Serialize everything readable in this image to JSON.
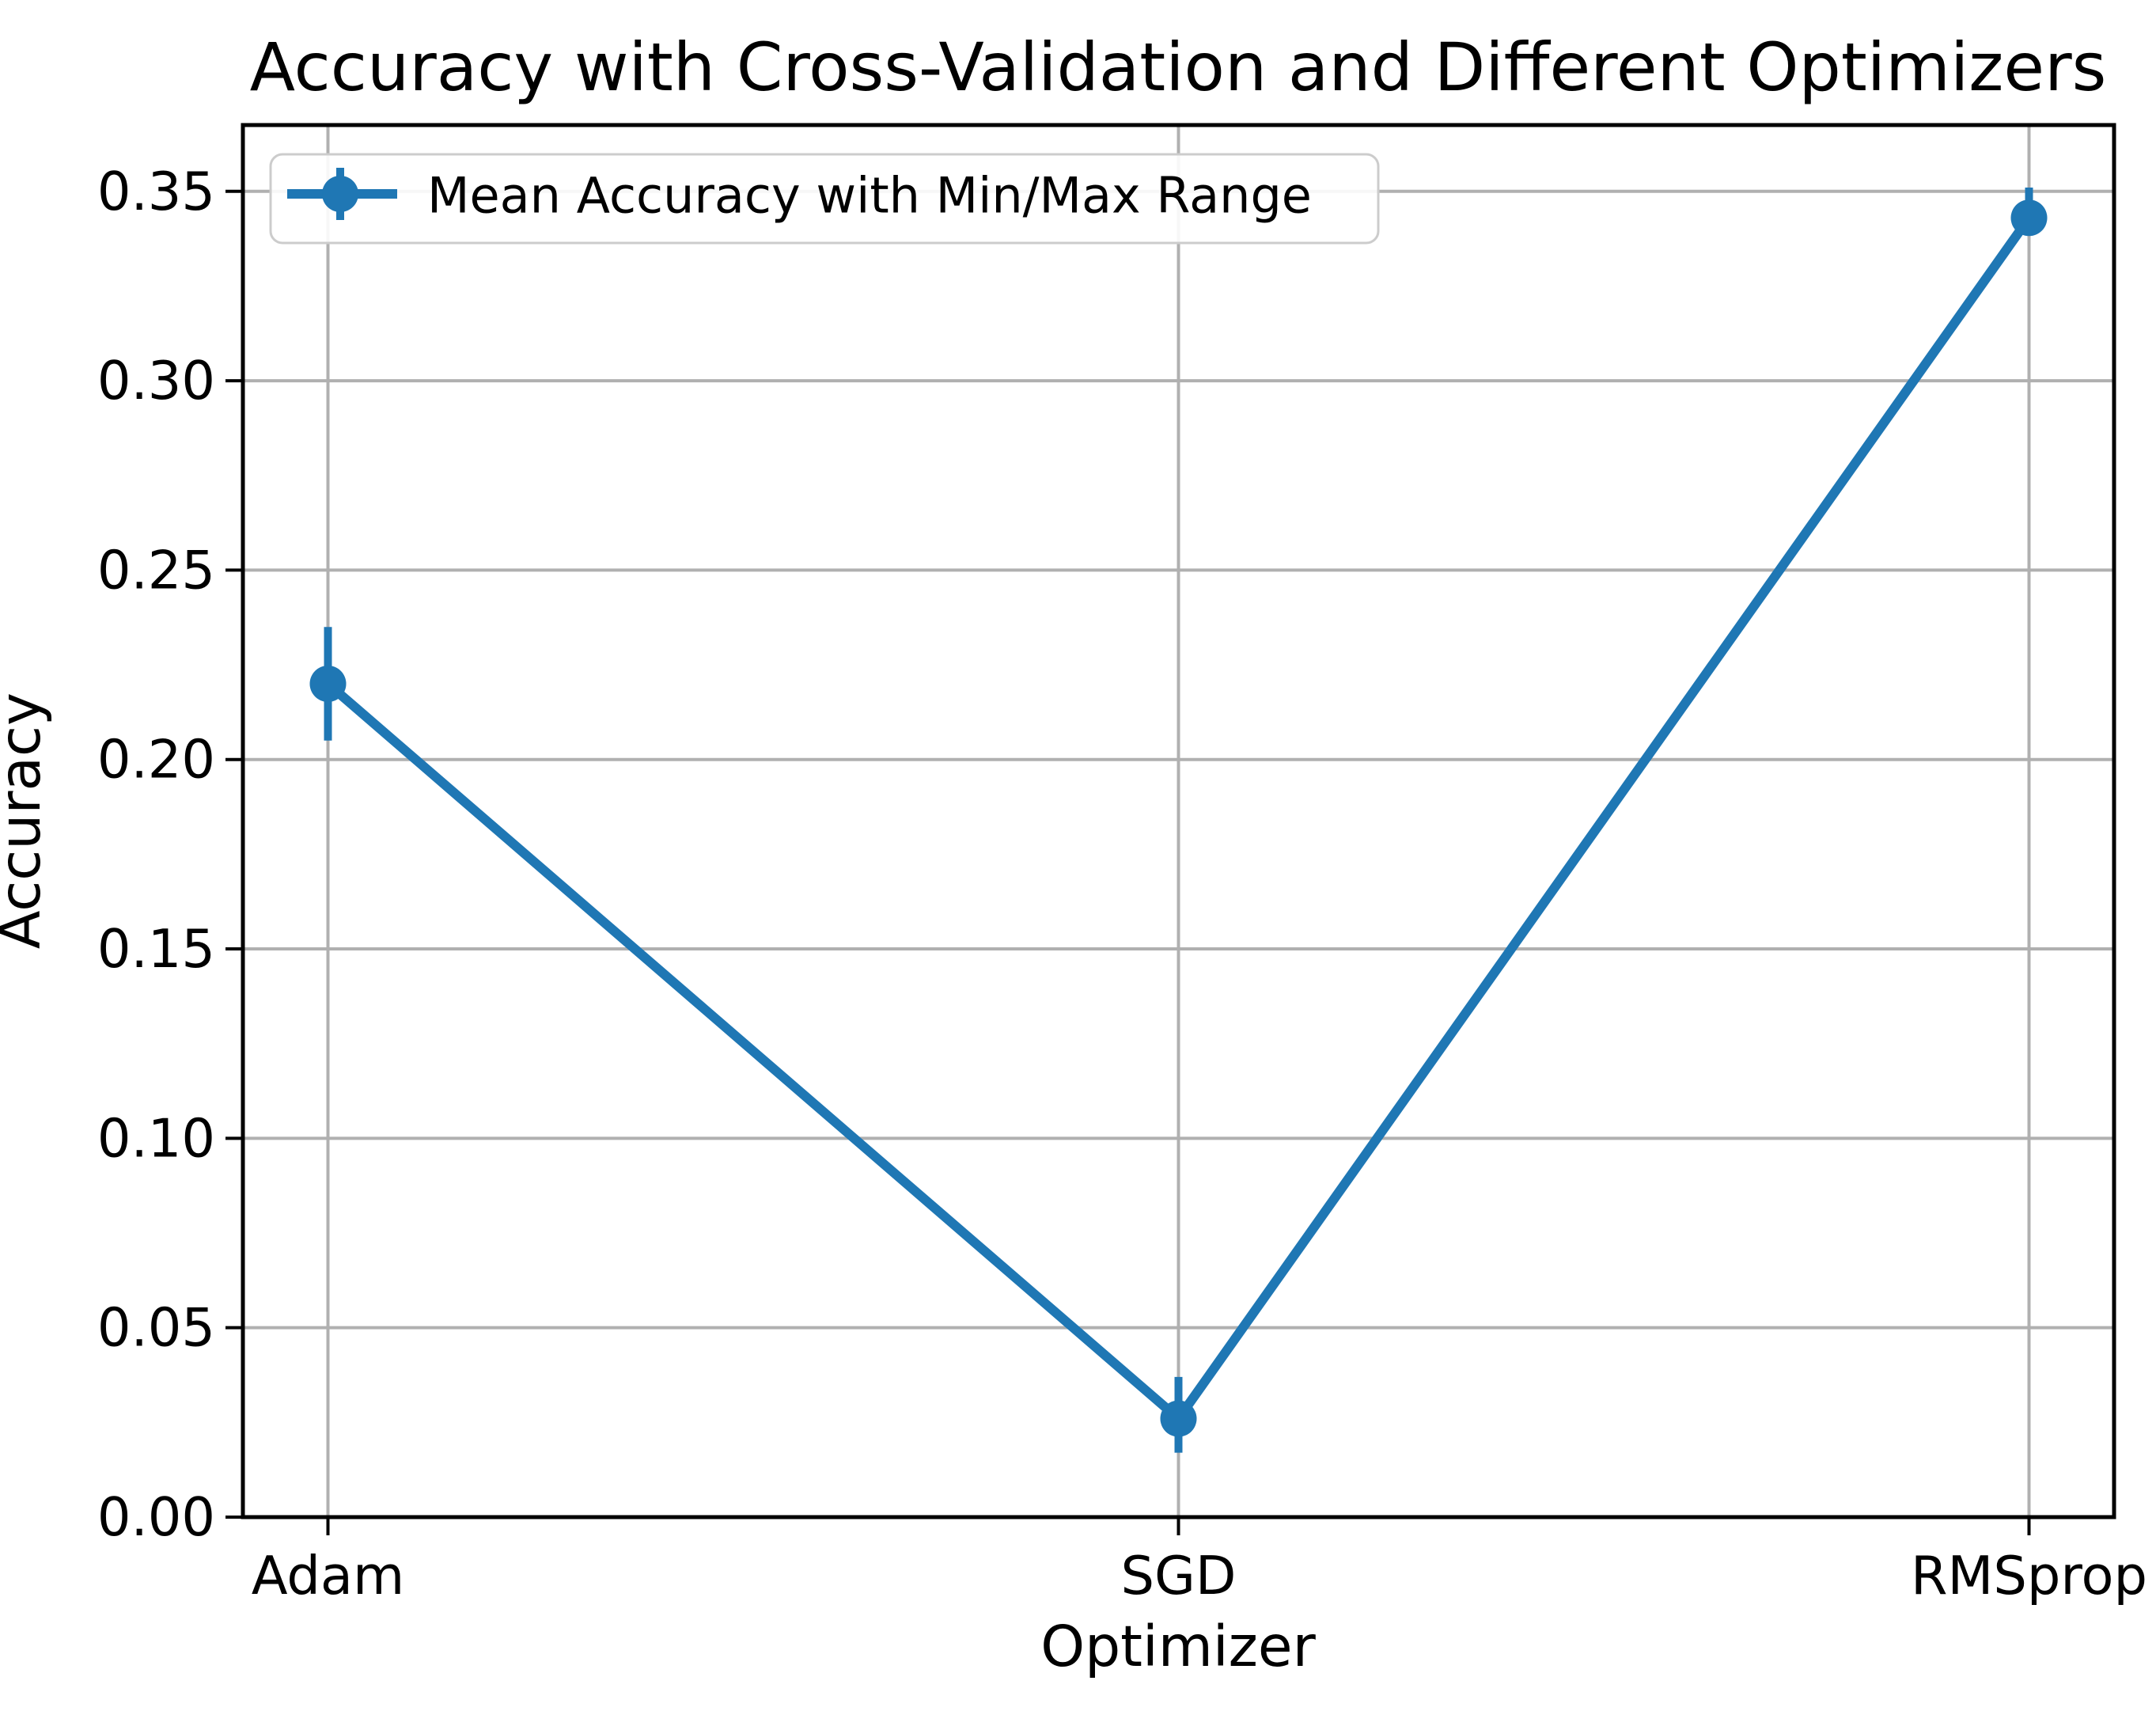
{
  "figure": {
    "background": "#ffffff"
  },
  "chart_data": {
    "type": "line",
    "title": "Accuracy with Cross-Validation and Different Optimizers",
    "xlabel": "Optimizer",
    "ylabel": "Accuracy",
    "categories": [
      "Adam",
      "SGD",
      "RMSprop"
    ],
    "series": [
      {
        "name": "Mean Accuracy with Min/Max Range",
        "mean": [
          0.22,
          0.026,
          0.343
        ],
        "min": [
          0.205,
          0.017,
          0.34
        ],
        "max": [
          0.235,
          0.037,
          0.351
        ]
      }
    ],
    "ylim": [
      0,
      0.3675
    ],
    "yticks": [
      "0.00",
      "0.05",
      "0.10",
      "0.15",
      "0.20",
      "0.25",
      "0.30",
      "0.35"
    ],
    "grid": true,
    "legend": {
      "label": "Mean Accuracy with Min/Max Range",
      "position": "upper left"
    },
    "colors": {
      "line": "#1f77b4",
      "grid": "#b0b0b0",
      "spine": "#000000",
      "text": "#000000",
      "legend_border": "#cccccc",
      "legend_bg": "#ffffff"
    }
  }
}
